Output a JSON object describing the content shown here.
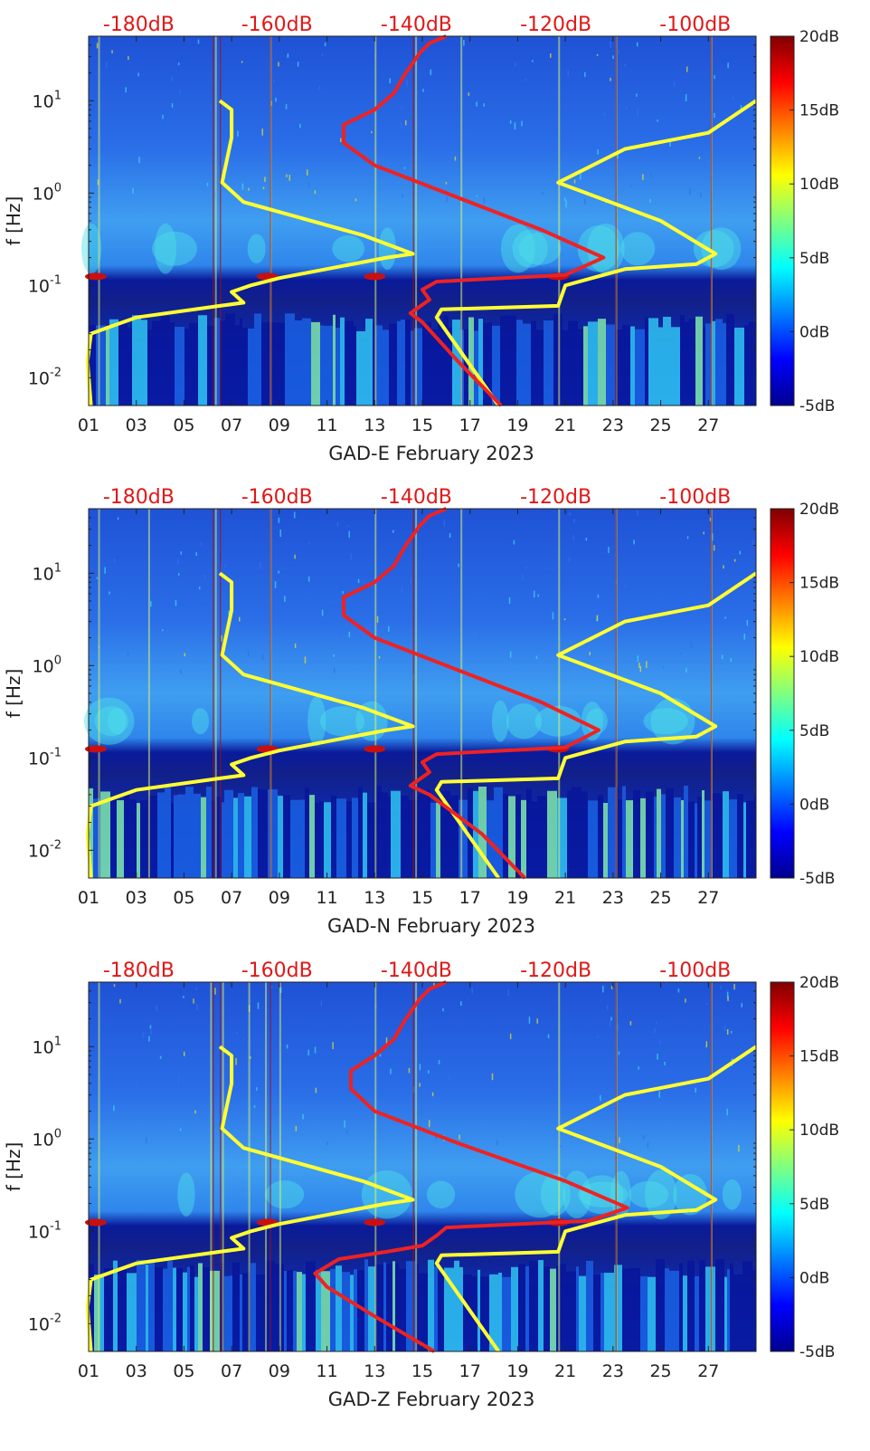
{
  "chart_data": [
    {
      "type": "heatmap",
      "component": "GAD-E",
      "xlabel": "GAD-E February 2023",
      "ylabel": "f [Hz]",
      "xticks": [
        "01",
        "03",
        "05",
        "07",
        "09",
        "11",
        "13",
        "15",
        "17",
        "19",
        "21",
        "23",
        "25",
        "27"
      ],
      "xrange_days": [
        1,
        29
      ],
      "yrange_hz": [
        0.005,
        50
      ],
      "yticks": [
        {
          "exp": "-2",
          "v": 0.01
        },
        {
          "exp": "-1",
          "v": 0.1
        },
        {
          "exp": "0",
          "v": 1
        },
        {
          "exp": "1",
          "v": 10
        }
      ],
      "top_labels": [
        "-180dB",
        "-160dB",
        "-140dB",
        "-120dB",
        "-100dB"
      ],
      "colorbar_labels": [
        "20dB",
        "15dB",
        "10dB",
        "5dB",
        "0dB",
        "-5dB"
      ],
      "colorbar_range_db": [
        -5,
        20
      ],
      "bright_days": [
        1.4,
        6.3,
        8.6,
        13.0,
        14.7,
        16.6,
        20.7,
        23.1,
        27.1
      ],
      "noise_model_curves": [
        {
          "name": "yellow-left",
          "color": "#ffff33",
          "points": [
            [
              1.1,
              0.005
            ],
            [
              0.95,
              0.015
            ],
            [
              1.1,
              0.03
            ],
            [
              3.0,
              0.045
            ],
            [
              6.5,
              0.06
            ],
            [
              7.5,
              0.065
            ],
            [
              7.0,
              0.085
            ],
            [
              7.8,
              0.1
            ],
            [
              9.0,
              0.12
            ],
            [
              13.5,
              0.2
            ],
            [
              14.6,
              0.22
            ],
            [
              12.5,
              0.35
            ],
            [
              7.5,
              0.8
            ],
            [
              6.6,
              1.3
            ],
            [
              7.0,
              4.0
            ],
            [
              7.0,
              8.0
            ],
            [
              6.5,
              10.0
            ]
          ]
        },
        {
          "name": "yellow-right",
          "color": "#ffff33",
          "points": [
            [
              18.2,
              0.005
            ],
            [
              15.6,
              0.045
            ],
            [
              15.8,
              0.055
            ],
            [
              20.7,
              0.06
            ],
            [
              21.0,
              0.1
            ],
            [
              23.5,
              0.15
            ],
            [
              26.5,
              0.17
            ],
            [
              27.3,
              0.22
            ],
            [
              25.0,
              0.5
            ],
            [
              20.7,
              1.3
            ],
            [
              23.5,
              3.0
            ],
            [
              27.0,
              4.5
            ],
            [
              29.0,
              10.0
            ]
          ]
        },
        {
          "name": "red-model",
          "color": "#ee2222",
          "points": [
            [
              18.3,
              0.005
            ],
            [
              16.5,
              0.015
            ],
            [
              15.0,
              0.04
            ],
            [
              14.5,
              0.05
            ],
            [
              15.3,
              0.07
            ],
            [
              15.0,
              0.09
            ],
            [
              15.6,
              0.11
            ],
            [
              21.0,
              0.13
            ],
            [
              22.6,
              0.2
            ],
            [
              20.0,
              0.4
            ],
            [
              16.0,
              1.0
            ],
            [
              13.0,
              2.0
            ],
            [
              11.7,
              3.5
            ],
            [
              11.7,
              5.5
            ],
            [
              13.0,
              8.0
            ],
            [
              13.8,
              12.0
            ],
            [
              14.3,
              20.0
            ],
            [
              14.9,
              33.0
            ],
            [
              15.3,
              42.0
            ],
            [
              16.0,
              50.0
            ]
          ]
        }
      ]
    },
    {
      "type": "heatmap",
      "component": "GAD-N",
      "xlabel": "GAD-N February 2023",
      "ylabel": "f [Hz]",
      "xticks": [
        "01",
        "03",
        "05",
        "07",
        "09",
        "11",
        "13",
        "15",
        "17",
        "19",
        "21",
        "23",
        "25",
        "27"
      ],
      "xrange_days": [
        1,
        29
      ],
      "yrange_hz": [
        0.005,
        50
      ],
      "yticks": [
        {
          "exp": "-2",
          "v": 0.01
        },
        {
          "exp": "-1",
          "v": 0.1
        },
        {
          "exp": "0",
          "v": 1
        },
        {
          "exp": "1",
          "v": 10
        }
      ],
      "top_labels": [
        "-180dB",
        "-160dB",
        "-140dB",
        "-120dB",
        "-100dB"
      ],
      "colorbar_labels": [
        "20dB",
        "15dB",
        "10dB",
        "5dB",
        "0dB",
        "-5dB"
      ],
      "colorbar_range_db": [
        -5,
        20
      ],
      "bright_days": [
        1.4,
        3.5,
        6.3,
        8.6,
        13.0,
        14.7,
        16.6,
        20.7,
        23.1,
        27.1
      ],
      "noise_model_curves": [
        {
          "name": "yellow-left",
          "color": "#ffff33",
          "points": [
            [
              1.1,
              0.005
            ],
            [
              0.95,
              0.015
            ],
            [
              1.1,
              0.03
            ],
            [
              3.0,
              0.045
            ],
            [
              6.5,
              0.06
            ],
            [
              7.5,
              0.065
            ],
            [
              7.0,
              0.085
            ],
            [
              7.8,
              0.1
            ],
            [
              9.0,
              0.12
            ],
            [
              13.5,
              0.2
            ],
            [
              14.6,
              0.22
            ],
            [
              12.5,
              0.35
            ],
            [
              7.5,
              0.8
            ],
            [
              6.6,
              1.3
            ],
            [
              7.0,
              4.0
            ],
            [
              7.0,
              8.0
            ],
            [
              6.5,
              10.0
            ]
          ]
        },
        {
          "name": "yellow-right",
          "color": "#ffff33",
          "points": [
            [
              18.2,
              0.005
            ],
            [
              15.6,
              0.045
            ],
            [
              15.8,
              0.055
            ],
            [
              20.7,
              0.06
            ],
            [
              21.0,
              0.1
            ],
            [
              23.5,
              0.15
            ],
            [
              26.5,
              0.17
            ],
            [
              27.3,
              0.22
            ],
            [
              25.0,
              0.5
            ],
            [
              20.7,
              1.3
            ],
            [
              23.5,
              3.0
            ],
            [
              27.0,
              4.5
            ],
            [
              29.0,
              10.0
            ]
          ]
        },
        {
          "name": "red-model",
          "color": "#ee2222",
          "points": [
            [
              19.3,
              0.005
            ],
            [
              17.5,
              0.015
            ],
            [
              15.3,
              0.04
            ],
            [
              14.5,
              0.05
            ],
            [
              15.3,
              0.07
            ],
            [
              15.0,
              0.09
            ],
            [
              15.6,
              0.11
            ],
            [
              21.0,
              0.13
            ],
            [
              22.4,
              0.2
            ],
            [
              20.0,
              0.4
            ],
            [
              16.0,
              1.0
            ],
            [
              13.0,
              2.0
            ],
            [
              11.7,
              3.5
            ],
            [
              11.7,
              5.5
            ],
            [
              13.0,
              8.0
            ],
            [
              13.8,
              12.0
            ],
            [
              14.3,
              20.0
            ],
            [
              14.9,
              33.0
            ],
            [
              15.3,
              42.0
            ],
            [
              16.0,
              50.0
            ]
          ]
        }
      ]
    },
    {
      "type": "heatmap",
      "component": "GAD-Z",
      "xlabel": "GAD-Z February 2023",
      "ylabel": "f [Hz]",
      "xticks": [
        "01",
        "03",
        "05",
        "07",
        "09",
        "11",
        "13",
        "15",
        "17",
        "19",
        "21",
        "23",
        "25",
        "27"
      ],
      "xrange_days": [
        1,
        29
      ],
      "yrange_hz": [
        0.005,
        50
      ],
      "yticks": [
        {
          "exp": "-2",
          "v": 0.01
        },
        {
          "exp": "-1",
          "v": 0.1
        },
        {
          "exp": "0",
          "v": 1
        },
        {
          "exp": "1",
          "v": 10
        }
      ],
      "top_labels": [
        "-180dB",
        "-160dB",
        "-140dB",
        "-120dB",
        "-100dB"
      ],
      "colorbar_labels": [
        "20dB",
        "15dB",
        "10dB",
        "5dB",
        "0dB",
        "-5dB"
      ],
      "colorbar_range_db": [
        -5,
        20
      ],
      "bright_days": [
        1.4,
        6.1,
        6.6,
        7.7,
        8.4,
        9.0,
        13.0,
        14.7,
        20.7,
        23.1,
        27.1
      ],
      "noise_model_curves": [
        {
          "name": "yellow-left",
          "color": "#ffff33",
          "points": [
            [
              1.1,
              0.005
            ],
            [
              0.95,
              0.015
            ],
            [
              1.1,
              0.03
            ],
            [
              3.0,
              0.045
            ],
            [
              6.5,
              0.06
            ],
            [
              7.5,
              0.065
            ],
            [
              7.0,
              0.085
            ],
            [
              7.8,
              0.1
            ],
            [
              9.0,
              0.12
            ],
            [
              13.5,
              0.2
            ],
            [
              14.6,
              0.22
            ],
            [
              12.5,
              0.35
            ],
            [
              7.5,
              0.8
            ],
            [
              6.6,
              1.3
            ],
            [
              7.0,
              4.0
            ],
            [
              7.0,
              8.0
            ],
            [
              6.5,
              10.0
            ]
          ]
        },
        {
          "name": "yellow-right",
          "color": "#ffff33",
          "points": [
            [
              18.2,
              0.005
            ],
            [
              15.6,
              0.045
            ],
            [
              15.8,
              0.055
            ],
            [
              20.7,
              0.06
            ],
            [
              21.0,
              0.1
            ],
            [
              23.5,
              0.15
            ],
            [
              26.5,
              0.17
            ],
            [
              27.3,
              0.22
            ],
            [
              25.0,
              0.5
            ],
            [
              20.7,
              1.3
            ],
            [
              23.5,
              3.0
            ],
            [
              27.0,
              4.5
            ],
            [
              29.0,
              10.0
            ]
          ]
        },
        {
          "name": "red-model",
          "color": "#ee2222",
          "points": [
            [
              15.5,
              0.005
            ],
            [
              13.0,
              0.012
            ],
            [
              11.0,
              0.025
            ],
            [
              10.5,
              0.035
            ],
            [
              11.5,
              0.05
            ],
            [
              13.5,
              0.06
            ],
            [
              15.0,
              0.07
            ],
            [
              15.6,
              0.09
            ],
            [
              16.0,
              0.11
            ],
            [
              22.0,
              0.13
            ],
            [
              23.6,
              0.18
            ],
            [
              21.0,
              0.35
            ],
            [
              16.5,
              0.9
            ],
            [
              13.0,
              2.0
            ],
            [
              12.0,
              3.5
            ],
            [
              12.0,
              5.5
            ],
            [
              13.0,
              8.0
            ],
            [
              13.8,
              12.0
            ],
            [
              14.3,
              20.0
            ],
            [
              14.9,
              33.0
            ],
            [
              15.3,
              42.0
            ],
            [
              16.0,
              50.0
            ]
          ]
        }
      ]
    }
  ]
}
